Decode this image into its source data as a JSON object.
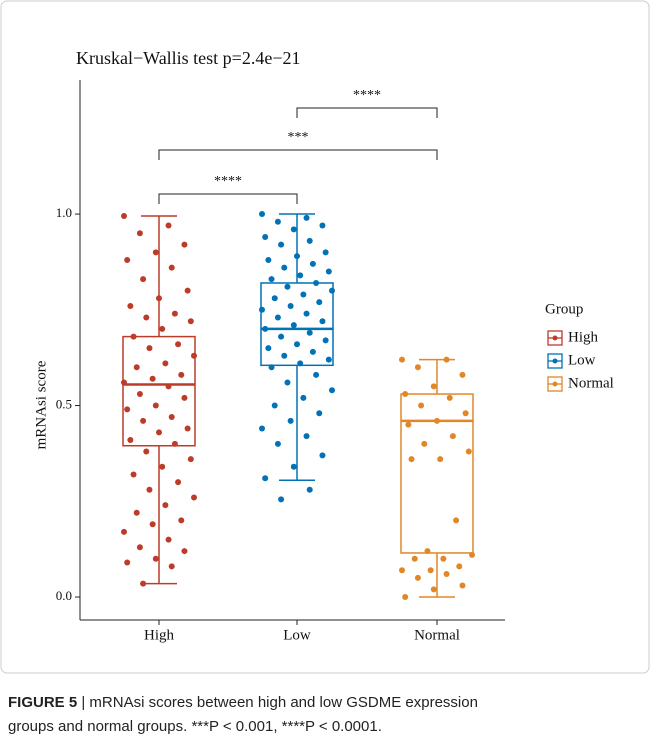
{
  "chart_data": {
    "type": "box",
    "title": "Kruskal−Wallis test p=2.4e−21",
    "y_label": "mRNAsi score",
    "categories": [
      "High",
      "Low",
      "Normal"
    ],
    "ylim": [
      -0.06,
      1.35
    ],
    "yticks": [
      {
        "value": 0,
        "label": "0.0"
      },
      {
        "value": 0.5,
        "label": "0.5"
      },
      {
        "value": 1,
        "label": "1.0"
      }
    ],
    "legend_title": "Group",
    "legend_position": "right",
    "series": [
      {
        "name": "High",
        "color": "#bc3c29",
        "box": {
          "min": 0.035,
          "q1": 0.395,
          "median": 0.555,
          "q3": 0.68,
          "max": 0.995
        },
        "points": [
          0.995,
          0.97,
          0.95,
          0.92,
          0.9,
          0.88,
          0.86,
          0.83,
          0.8,
          0.78,
          0.76,
          0.74,
          0.73,
          0.72,
          0.7,
          0.68,
          0.66,
          0.65,
          0.63,
          0.61,
          0.6,
          0.58,
          0.57,
          0.56,
          0.55,
          0.53,
          0.52,
          0.5,
          0.49,
          0.47,
          0.46,
          0.44,
          0.43,
          0.41,
          0.4,
          0.38,
          0.36,
          0.34,
          0.32,
          0.3,
          0.28,
          0.26,
          0.24,
          0.22,
          0.2,
          0.19,
          0.17,
          0.15,
          0.13,
          0.12,
          0.1,
          0.09,
          0.08,
          0.035
        ]
      },
      {
        "name": "Low",
        "color": "#0072b5",
        "box": {
          "min": 0.305,
          "q1": 0.605,
          "median": 0.7,
          "q3": 0.82,
          "max": 1.0
        },
        "points": [
          1.0,
          0.99,
          0.98,
          0.97,
          0.96,
          0.94,
          0.93,
          0.92,
          0.9,
          0.89,
          0.88,
          0.87,
          0.86,
          0.85,
          0.84,
          0.83,
          0.82,
          0.81,
          0.8,
          0.79,
          0.78,
          0.77,
          0.76,
          0.75,
          0.74,
          0.73,
          0.72,
          0.71,
          0.7,
          0.69,
          0.68,
          0.67,
          0.66,
          0.65,
          0.64,
          0.63,
          0.62,
          0.61,
          0.6,
          0.58,
          0.56,
          0.54,
          0.52,
          0.5,
          0.48,
          0.46,
          0.44,
          0.42,
          0.4,
          0.37,
          0.34,
          0.31,
          0.28,
          0.255
        ]
      },
      {
        "name": "Normal",
        "color": "#e18727",
        "box": {
          "min": 0.0,
          "q1": 0.115,
          "median": 0.46,
          "q3": 0.53,
          "max": 0.62
        },
        "points": [
          0.62,
          0.62,
          0.6,
          0.58,
          0.55,
          0.53,
          0.52,
          0.5,
          0.48,
          0.46,
          0.45,
          0.42,
          0.4,
          0.38,
          0.36,
          0.36,
          0.2,
          0.12,
          0.11,
          0.1,
          0.1,
          0.08,
          0.07,
          0.07,
          0.06,
          0.05,
          0.03,
          0.02,
          0.0
        ]
      }
    ],
    "comparisons": [
      {
        "groups": [
          "High",
          "Low"
        ],
        "label": "****"
      },
      {
        "groups": [
          "High",
          "Normal"
        ],
        "label": "***"
      },
      {
        "groups": [
          "Low",
          "Normal"
        ],
        "label": "****"
      }
    ]
  },
  "caption": {
    "label": "FIGURE 5",
    "lines": [
      "| mRNAsi scores between high and low GSDME expression",
      "groups and normal groups. ***P < 0.001, ****P < 0.0001."
    ]
  }
}
